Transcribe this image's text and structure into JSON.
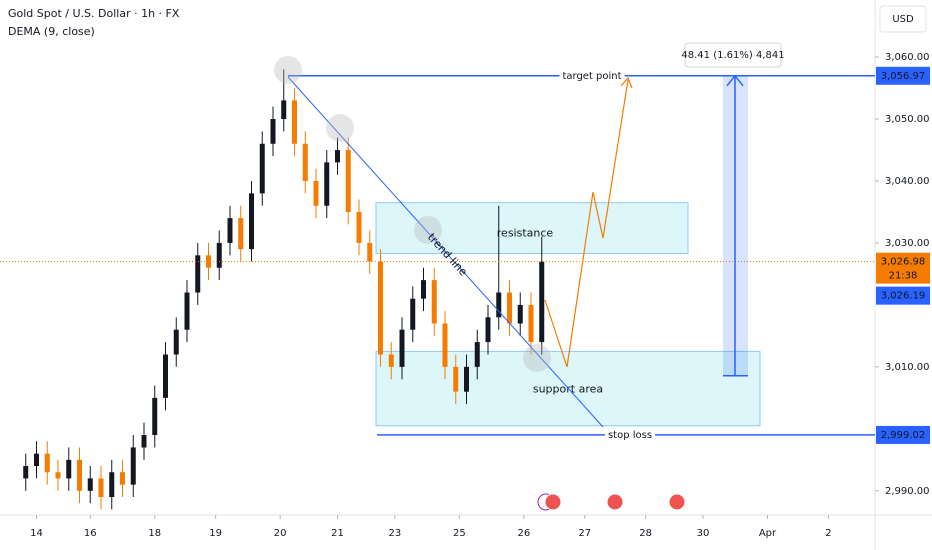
{
  "chart_data": {
    "type": "candlestick",
    "title": "Gold Spot / U.S. Dollar · 1h · FX",
    "indicator": "DEMA (9, close)",
    "currency": "USD",
    "up_color": "#131722",
    "down_color": "#f57c00",
    "x": [
      1.5,
      3,
      4.5,
      6,
      7.5,
      9,
      10.5,
      12,
      13.5,
      15,
      16.5,
      18,
      19.5,
      21,
      22.5,
      24,
      25.5,
      27,
      28.5,
      30,
      31.5,
      33,
      34.5,
      36,
      37.5,
      39,
      40.5,
      42,
      43.5,
      45,
      46.5,
      48,
      49.5,
      51,
      52.5,
      54,
      55.5,
      57,
      58.5,
      60,
      61.5,
      63,
      64.5,
      66,
      67.5,
      69,
      70.5,
      72,
      73.5
    ],
    "open": [
      2992,
      2994,
      2996,
      2993,
      2992,
      2995,
      2990,
      2992,
      2989,
      2993,
      2991,
      2997,
      2999,
      3005,
      3012,
      3016,
      3022,
      3028,
      3026,
      3030,
      3034,
      3029,
      3038,
      3046,
      3050,
      3053,
      3046,
      3040,
      3036,
      3043,
      3045,
      3035,
      3030,
      3027,
      3012,
      3010,
      3016,
      3021,
      3024,
      3017,
      3010,
      3006,
      3010,
      3014,
      3018,
      3022,
      3017,
      3020,
      3014
    ],
    "high": [
      2996,
      2998,
      2998,
      2995,
      2997,
      2997,
      2994,
      2994,
      2995,
      2995,
      2999,
      3001,
      3007,
      3014,
      3018,
      3024,
      3030,
      3030,
      3032,
      3036,
      3036,
      3040,
      3048,
      3052,
      3058,
      3055,
      3048,
      3042,
      3045,
      3047,
      3047,
      3037,
      3032,
      3029,
      3014,
      3018,
      3023,
      3026,
      3026,
      3019,
      3012,
      3012,
      3016,
      3020,
      3036,
      3024,
      3022,
      3022,
      3031
    ],
    "low": [
      2990,
      2992,
      2991,
      2990,
      2990,
      2988,
      2988,
      2987,
      2987,
      2989,
      2989,
      2995,
      2997,
      3003,
      3010,
      3014,
      3020,
      3024,
      3024,
      3028,
      3027,
      3027,
      3036,
      3044,
      3048,
      3044,
      3038,
      3034,
      3034,
      3041,
      3033,
      3028,
      3025,
      3010,
      3008,
      3008,
      3014,
      3019,
      3015,
      3008,
      3004,
      3004,
      3008,
      3012,
      3016,
      3015,
      3015,
      3012,
      3012
    ],
    "close": [
      2994,
      2996,
      2993,
      2992,
      2995,
      2990,
      2992,
      2989,
      2993,
      2991,
      2997,
      2999,
      3005,
      3012,
      3016,
      3022,
      3028,
      3026,
      3030,
      3034,
      3029,
      3038,
      3046,
      3050,
      3053,
      3046,
      3040,
      3036,
      3043,
      3045,
      3035,
      3030,
      3027,
      3012,
      3010,
      3016,
      3021,
      3024,
      3017,
      3010,
      3006,
      3010,
      3014,
      3018,
      3022,
      3017,
      3020,
      3014,
      3026.98
    ],
    "xlim": [
      0,
      120
    ],
    "xticks": [
      {
        "value": 3,
        "label": "14"
      },
      {
        "value": 10.5,
        "label": "16"
      },
      {
        "value": 19.5,
        "label": "18"
      },
      {
        "value": 28,
        "label": "19"
      },
      {
        "value": 37,
        "label": "20"
      },
      {
        "value": 45,
        "label": "21"
      },
      {
        "value": 53,
        "label": "23"
      },
      {
        "value": 62,
        "label": "25"
      },
      {
        "value": 71,
        "label": "26"
      },
      {
        "value": 79.5,
        "label": "27"
      },
      {
        "value": 88,
        "label": "28"
      },
      {
        "value": 96,
        "label": "30"
      },
      {
        "value": 105,
        "label": "Apr"
      },
      {
        "value": 113.5,
        "label": "2"
      }
    ],
    "ylim": [
      2986.1,
      3069.2
    ],
    "yticks": [
      {
        "value": 3060,
        "label": "3,060.00"
      },
      {
        "value": 3050,
        "label": "3,050.00"
      },
      {
        "value": 3040,
        "label": "3,040.00"
      },
      {
        "value": 3030,
        "label": "3,030.00"
      },
      {
        "value": 3010,
        "label": "3,010.00"
      },
      {
        "value": 2990,
        "label": "2,990.00"
      }
    ],
    "levels": [
      {
        "label": "target point",
        "value": 3056.97,
        "price_label": "3,056.97"
      },
      {
        "label": "stop loss",
        "value": 2999.02,
        "price_label": "2,999.02"
      }
    ],
    "zones": [
      {
        "label": "resistance",
        "range": [
          3028.3,
          3036.5
        ]
      },
      {
        "label": "support area",
        "range": [
          3000.5,
          3012.5
        ]
      }
    ],
    "trend_label": "trend line",
    "last_price": {
      "value": 3026.98,
      "label": "3,026.98",
      "countdown": "21:38"
    },
    "dema_last": {
      "value": 3026.19,
      "label": "3,026.19"
    },
    "measure": {
      "label": "48.41 (1.61%) 4,841",
      "from": 3008.56,
      "to": 3056.97
    }
  }
}
